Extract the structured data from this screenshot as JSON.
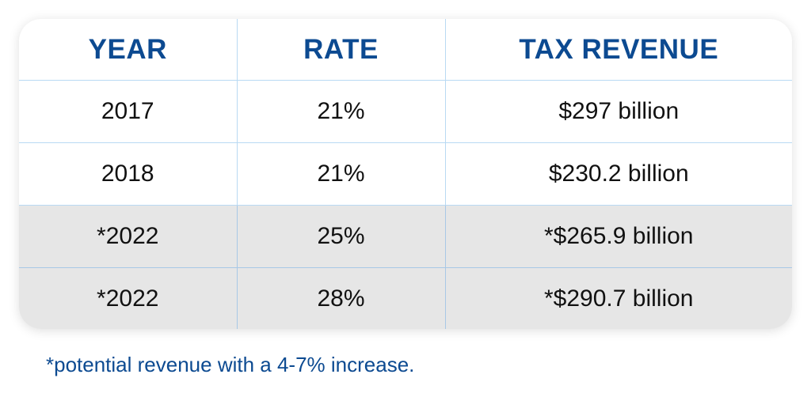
{
  "table": {
    "headers": [
      "YEAR",
      "RATE",
      "TAX REVENUE"
    ],
    "rows": [
      {
        "year": "2017",
        "rate": "21%",
        "revenue": "$297 billion",
        "shaded": false
      },
      {
        "year": "2018",
        "rate": "21%",
        "revenue": "$230.2 billion",
        "shaded": false
      },
      {
        "year": "*2022",
        "rate": "25%",
        "revenue": "*$265.9 billion",
        "shaded": true
      },
      {
        "year": "*2022",
        "rate": "28%",
        "revenue": "*$290.7 billion",
        "shaded": true
      }
    ]
  },
  "footnote": "*potential revenue with a 4-7% increase.",
  "colors": {
    "header_text": "#0c4a91",
    "shaded_row": "#e6e6e6",
    "grid": "#b9d9f3"
  }
}
